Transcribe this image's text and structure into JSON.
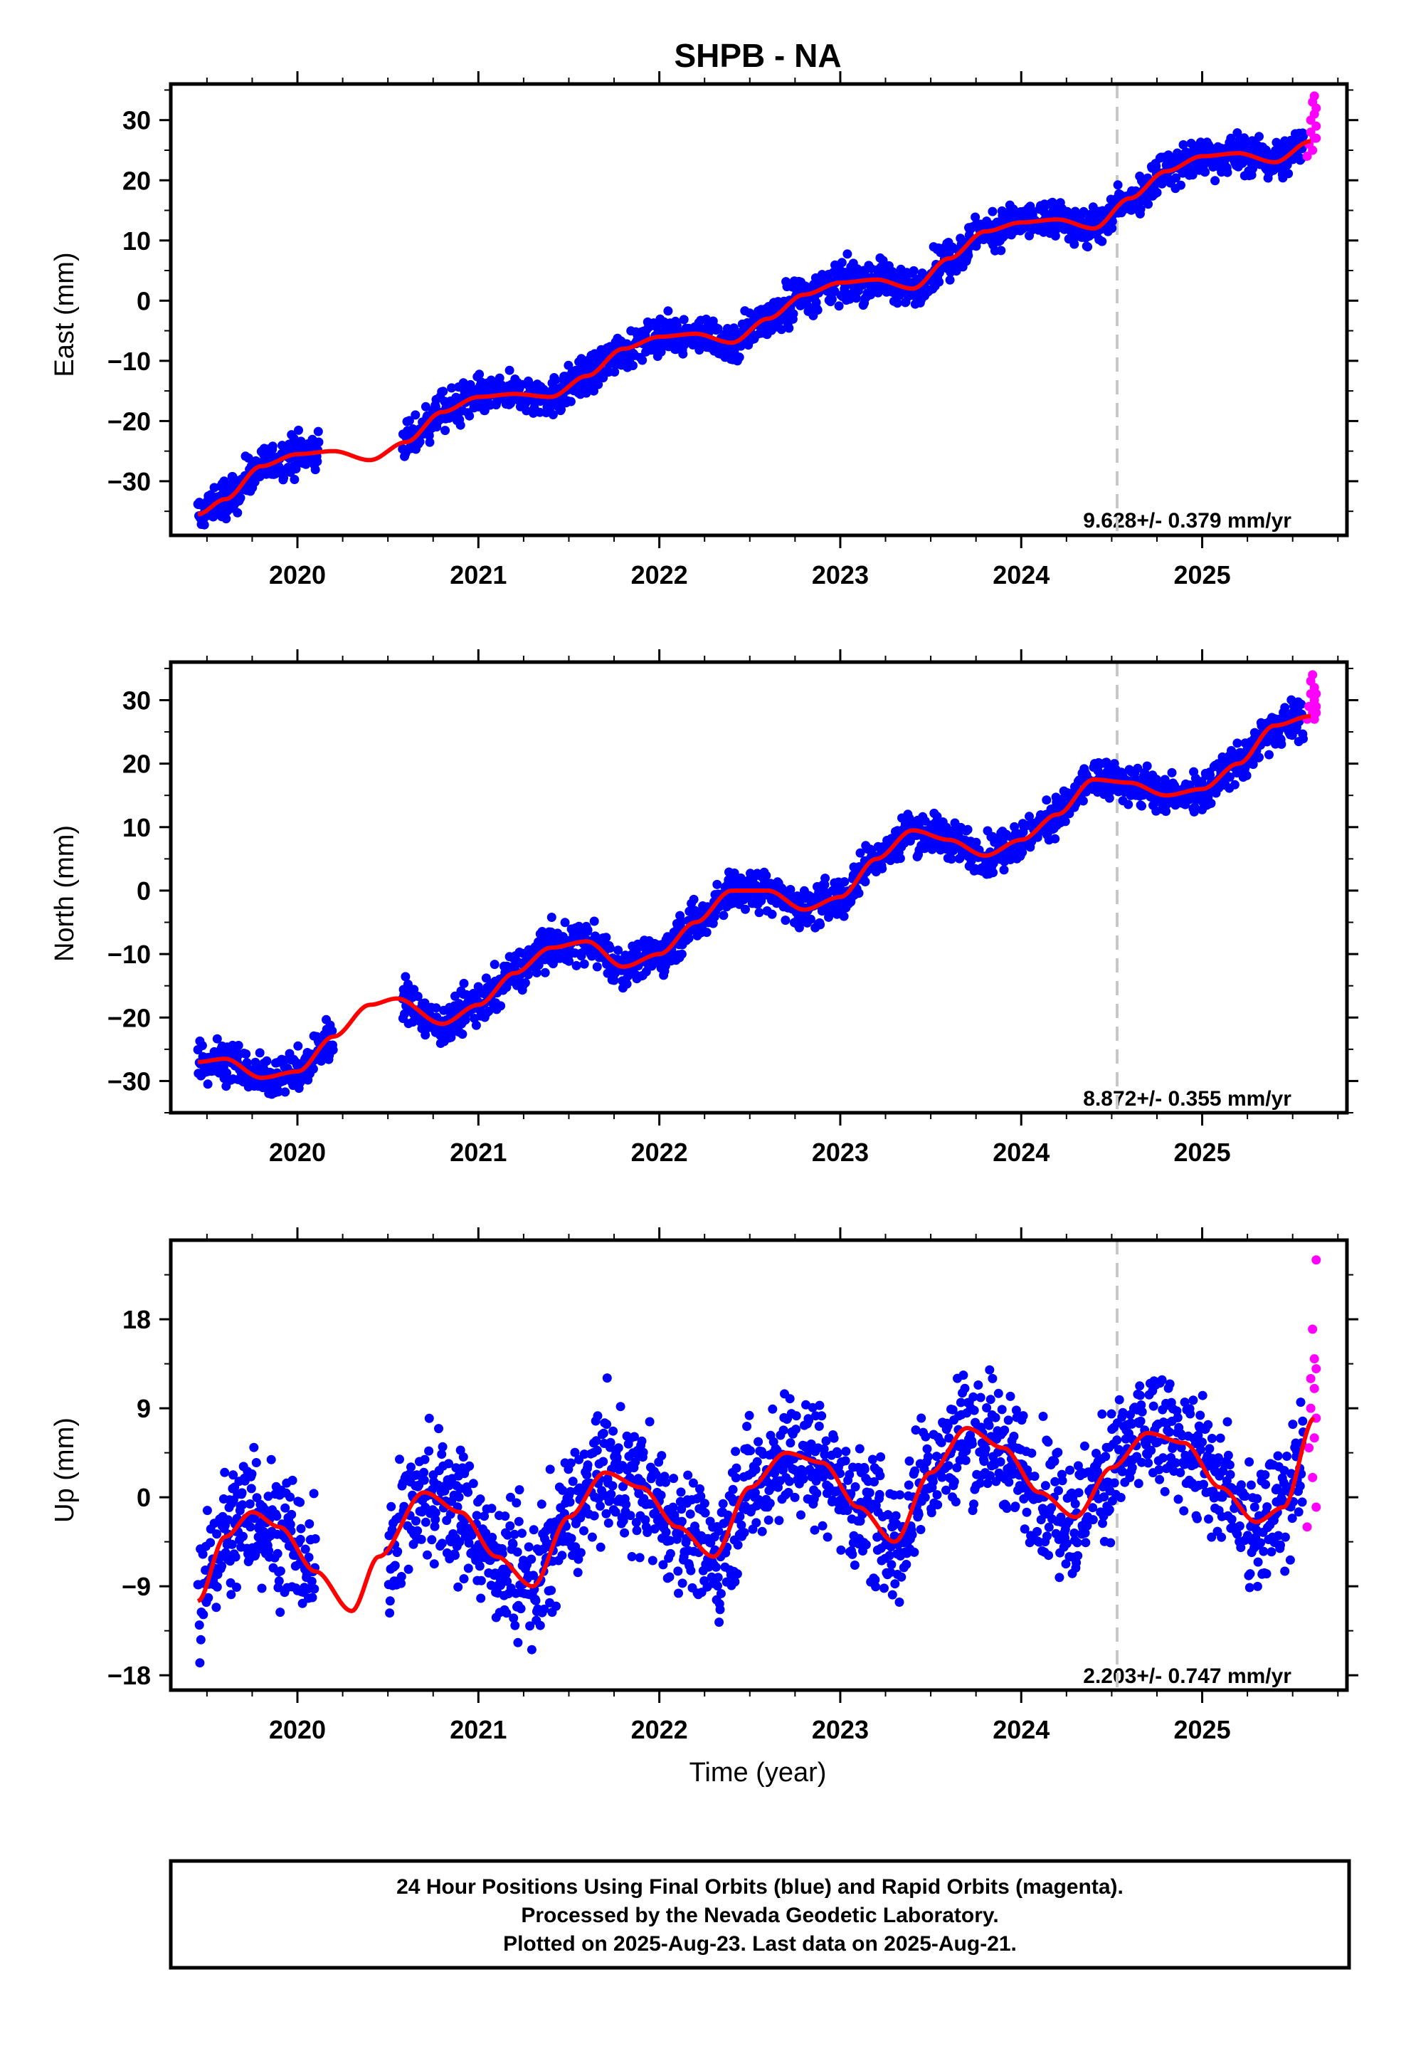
{
  "title": "SHPB - NA",
  "colors": {
    "final": "#0000ff",
    "rapid": "#ff00ff",
    "fit": "#ff0000",
    "break_line": "#c8c8c8"
  },
  "chart_data": [
    {
      "type": "scatter",
      "component": "east",
      "ylabel": "East (mm)",
      "xlabel": "",
      "xlim": [
        2019.3,
        2025.8
      ],
      "ylim": [
        -39,
        36
      ],
      "yticks": [
        30,
        20,
        10,
        0,
        -10,
        -20,
        -30
      ],
      "ytick_labels": [
        "30",
        "20",
        "10",
        "0",
        "−10",
        "−20",
        "−30"
      ],
      "xticks": [
        2020,
        2021,
        2022,
        2023,
        2024,
        2025
      ],
      "xtick_labels": [
        "2020",
        "2021",
        "2022",
        "2023",
        "2024",
        "2025"
      ],
      "rate": "9.628+/- 0.379 mm/yr",
      "break_epoch": 2024.53,
      "rate_mm_yr": 9.628,
      "offset_mm": -25.2,
      "noise_mm": 1.6,
      "gaps": [
        [
          2020.12,
          2020.58
        ]
      ],
      "fit": {
        "x": [
          2019.45,
          2019.6,
          2019.8,
          2020.0,
          2020.2,
          2020.4,
          2020.6,
          2020.8,
          2021.0,
          2021.2,
          2021.4,
          2021.6,
          2021.8,
          2022.0,
          2022.2,
          2022.4,
          2022.6,
          2022.8,
          2023.0,
          2023.2,
          2023.4,
          2023.6,
          2023.8,
          2024.0,
          2024.2,
          2024.4,
          2024.6,
          2024.8,
          2025.0,
          2025.2,
          2025.4,
          2025.6
        ],
        "y": [
          -35.5,
          -33,
          -27.5,
          -25.5,
          -25,
          -26.5,
          -23.5,
          -18.5,
          -16,
          -15.5,
          -16,
          -12.5,
          -8,
          -6,
          -5.5,
          -7,
          -3,
          1,
          3,
          3.5,
          2,
          7,
          11.5,
          13,
          13.5,
          12,
          17,
          21.5,
          24,
          24.5,
          23,
          26.5
        ]
      },
      "rapid": {
        "x": [
          2025.58,
          2025.59,
          2025.6,
          2025.6,
          2025.61,
          2025.61,
          2025.62,
          2025.62,
          2025.62,
          2025.63,
          2025.63,
          2025.63
        ],
        "y": [
          24,
          26,
          28,
          30,
          25,
          33,
          27,
          34,
          31,
          29,
          32,
          27
        ]
      }
    },
    {
      "type": "scatter",
      "component": "north",
      "ylabel": "North (mm)",
      "xlabel": "",
      "xlim": [
        2019.3,
        2025.8
      ],
      "ylim": [
        -35,
        36
      ],
      "yticks": [
        30,
        20,
        10,
        0,
        -10,
        -20,
        -30
      ],
      "ytick_labels": [
        "30",
        "20",
        "10",
        "0",
        "−10",
        "−20",
        "−30"
      ],
      "xticks": [
        2020,
        2021,
        2022,
        2023,
        2024,
        2025
      ],
      "xtick_labels": [
        "2020",
        "2021",
        "2022",
        "2023",
        "2024",
        "2025"
      ],
      "rate": "8.872+/- 0.355 mm/yr",
      "break_epoch": 2024.53,
      "rate_mm_yr": 8.872,
      "offset_mm": -17.5,
      "noise_mm": 1.6,
      "gaps": [
        [
          2020.2,
          2020.58
        ]
      ],
      "fit": {
        "x": [
          2019.45,
          2019.6,
          2019.8,
          2020.0,
          2020.2,
          2020.4,
          2020.55,
          2020.8,
          2021.0,
          2021.2,
          2021.4,
          2021.6,
          2021.8,
          2022.0,
          2022.2,
          2022.4,
          2022.6,
          2022.8,
          2023.0,
          2023.2,
          2023.4,
          2023.6,
          2023.8,
          2024.0,
          2024.2,
          2024.4,
          2024.6,
          2024.8,
          2025.0,
          2025.2,
          2025.4,
          2025.6
        ],
        "y": [
          -27,
          -26.5,
          -29.5,
          -28.5,
          -23,
          -18,
          -17,
          -21,
          -18,
          -13,
          -9,
          -8,
          -12,
          -10,
          -5,
          0,
          0,
          -3,
          -1,
          5,
          9.5,
          8,
          5.5,
          8,
          12,
          17.5,
          17,
          15,
          16,
          20,
          26,
          27.5
        ]
      },
      "rapid": {
        "x": [
          2025.58,
          2025.59,
          2025.6,
          2025.6,
          2025.61,
          2025.61,
          2025.62,
          2025.62,
          2025.62,
          2025.63,
          2025.63,
          2025.63
        ],
        "y": [
          27,
          29,
          31,
          33,
          28,
          34,
          30,
          32,
          27,
          29,
          31,
          28
        ]
      }
    },
    {
      "type": "scatter",
      "component": "up",
      "ylabel": "Up (mm)",
      "xlabel": "Time (year)",
      "xlim": [
        2019.3,
        2025.8
      ],
      "ylim": [
        -19.5,
        26
      ],
      "yticks": [
        18,
        9,
        0,
        -9,
        -18
      ],
      "ytick_labels": [
        "18",
        "9",
        "0",
        "−9",
        "−18"
      ],
      "xticks": [
        2020,
        2021,
        2022,
        2023,
        2024,
        2025
      ],
      "xtick_labels": [
        "2020",
        "2021",
        "2022",
        "2023",
        "2024",
        "2025"
      ],
      "rate": "2.203+/- 0.747 mm/yr",
      "break_epoch": 2024.53,
      "rate_mm_yr": 2.203,
      "offset_mm": -3.2,
      "noise_mm": 3.2,
      "gaps": [
        [
          2020.1,
          2020.5
        ]
      ],
      "fit": {
        "x": [
          2019.45,
          2019.6,
          2019.75,
          2019.9,
          2020.1,
          2020.3,
          2020.45,
          2020.7,
          2020.9,
          2021.1,
          2021.3,
          2021.5,
          2021.7,
          2021.9,
          2022.1,
          2022.3,
          2022.5,
          2022.7,
          2022.9,
          2023.1,
          2023.3,
          2023.5,
          2023.7,
          2023.9,
          2024.1,
          2024.3,
          2024.5,
          2024.7,
          2024.9,
          2025.1,
          2025.3,
          2025.45,
          2025.62
        ],
        "y": [
          -10.5,
          -4,
          -1.5,
          -3,
          -7.5,
          -11.5,
          -6,
          0.5,
          -1.5,
          -6,
          -9,
          -2,
          2.5,
          1,
          -3,
          -6,
          1,
          4.5,
          3.5,
          -1,
          -4.5,
          2.5,
          7,
          5,
          0.5,
          -2,
          3,
          6.5,
          5.5,
          1,
          -2.5,
          -1,
          8
        ]
      },
      "rapid": {
        "x": [
          2025.58,
          2025.59,
          2025.6,
          2025.6,
          2025.61,
          2025.61,
          2025.62,
          2025.62,
          2025.62,
          2025.63,
          2025.63,
          2025.63,
          2025.63
        ],
        "y": [
          -3,
          5,
          9,
          12,
          17,
          2,
          11,
          14,
          6,
          24,
          -1,
          8,
          13
        ]
      }
    }
  ],
  "footer": {
    "line1": "24 Hour Positions Using Final Orbits (blue) and Rapid Orbits (magenta).",
    "line2": "Processed by the Nevada Geodetic Laboratory.",
    "line3": "Plotted on 2025-Aug-23. Last data on 2025-Aug-21."
  }
}
